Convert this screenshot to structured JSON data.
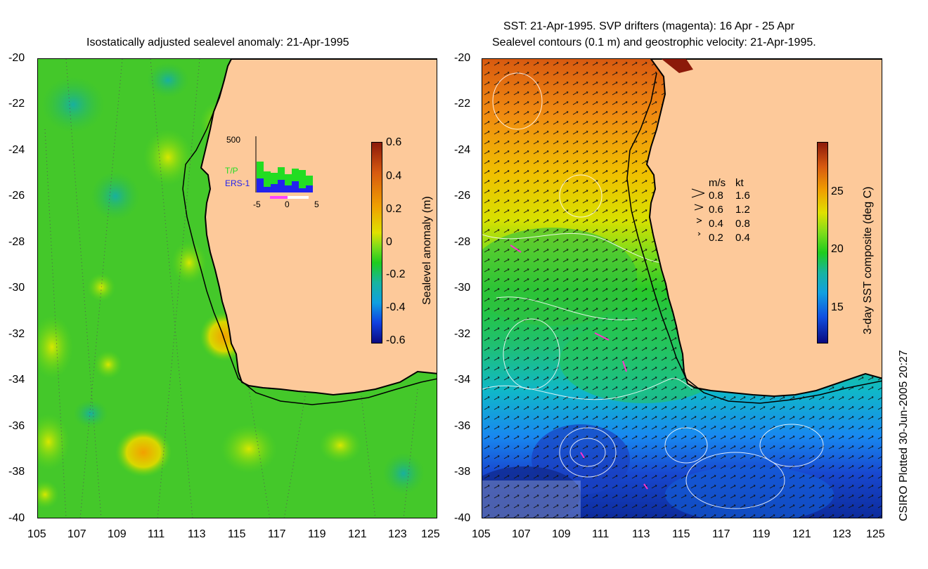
{
  "left_panel": {
    "title": "Isostatically adjusted sealevel anomaly: 21-Apr-1995",
    "y_ticks": [
      "-20",
      "-22",
      "-24",
      "-26",
      "-28",
      "-30",
      "-32",
      "-34",
      "-36",
      "-38",
      "-40"
    ],
    "x_ticks": [
      "105",
      "107",
      "109",
      "111",
      "113",
      "115",
      "117",
      "119",
      "121",
      "123",
      "125"
    ],
    "inset": {
      "y_label": "500",
      "legend_tp": "T/P",
      "legend_ers": "ERS-1",
      "x_ticks": [
        "-5",
        "0",
        "5"
      ],
      "colors": {
        "tp": "#22dd22",
        "ers": "#2222ee",
        "marker": "#ff44ff"
      }
    },
    "colorbar": {
      "label": "Sealevel anomaly (m)",
      "ticks": [
        "0.6",
        "0.4",
        "0.2",
        "0",
        "-0.2",
        "-0.4",
        "-0.6"
      ]
    }
  },
  "right_panel": {
    "title_line1": "SST: 21-Apr-1995. SVP drifters (magenta): 16 Apr - 25 Apr",
    "title_line2": "Sealevel contours (0.1 m) and geostrophic velocity: 21-Apr-1995.",
    "y_ticks": [
      "-20",
      "-22",
      "-24",
      "-26",
      "-28",
      "-30",
      "-32",
      "-34",
      "-36",
      "-38",
      "-40"
    ],
    "x_ticks": [
      "105",
      "107",
      "109",
      "111",
      "113",
      "115",
      "117",
      "119",
      "121",
      "123",
      "125"
    ],
    "velocity_legend": {
      "header_ms": "m/s",
      "header_kt": "kt",
      "rows": [
        {
          "ms": "0.8",
          "kt": "1.6"
        },
        {
          "ms": "0.6",
          "kt": "1.2"
        },
        {
          "ms": "0.4",
          "kt": "0.8"
        },
        {
          "ms": "0.2",
          "kt": "0.4"
        }
      ]
    },
    "colorbar": {
      "label": "3-day SST composite (deg C)",
      "ticks": [
        "25",
        "20",
        "15"
      ]
    }
  },
  "credit": "CSIRO Plotted 30-Jun-2005 20:27",
  "colors": {
    "land": "#fdc99a",
    "ocean_green": "#1ecc1e"
  }
}
